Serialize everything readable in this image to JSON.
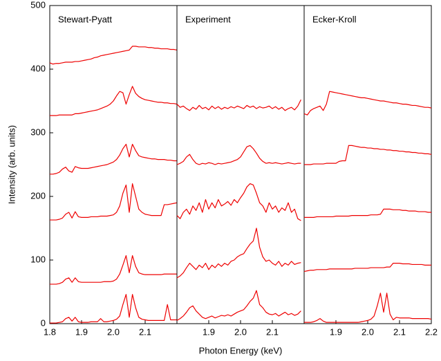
{
  "chart_data": [
    {
      "type": "line",
      "title": "Stewart-Pyatt",
      "ylabel": "Intensity (arb. units)",
      "x": [
        1.8,
        1.81,
        1.82,
        1.83,
        1.84,
        1.85,
        1.86,
        1.87,
        1.88,
        1.89,
        1.9,
        1.91,
        1.92,
        1.93,
        1.94,
        1.95,
        1.96,
        1.97,
        1.98,
        1.99,
        2.0,
        2.01,
        2.02,
        2.03,
        2.04,
        2.05,
        2.06,
        2.07,
        2.08,
        2.09,
        2.1,
        2.11,
        2.12,
        2.13,
        2.14,
        2.15,
        2.16,
        2.17,
        2.18,
        2.19,
        2.2
      ],
      "xlim": [
        1.8,
        2.2
      ],
      "xticks": [
        1.8,
        1.9,
        {
          "value": 2,
          "label": "2.0"
        },
        2.1
      ],
      "ylim": [
        0,
        500
      ],
      "yticks": [
        0,
        100,
        200,
        300,
        400,
        500
      ],
      "series": [
        {
          "color": "#ee0000",
          "values": [
            1,
            1,
            1,
            2,
            3,
            8,
            10,
            4,
            10,
            3,
            2,
            2,
            2,
            3,
            3,
            3,
            8,
            3,
            3,
            4,
            5,
            7,
            12,
            30,
            46,
            10,
            46,
            25,
            10,
            7,
            6,
            5,
            5,
            5,
            5,
            5,
            5,
            30,
            6,
            6,
            6
          ]
        },
        {
          "color": "#ee0000",
          "values": [
            62,
            62,
            62,
            63,
            65,
            70,
            72,
            65,
            72,
            66,
            65,
            65,
            65,
            65,
            65,
            65,
            65,
            66,
            66,
            66,
            67,
            70,
            78,
            92,
            107,
            80,
            107,
            90,
            80,
            78,
            77,
            77,
            77,
            77,
            77,
            77,
            78,
            78,
            78,
            78,
            78
          ]
        },
        {
          "color": "#ee0000",
          "values": [
            163,
            163,
            163,
            164,
            166,
            172,
            175,
            166,
            176,
            168,
            167,
            167,
            167,
            168,
            168,
            168,
            169,
            169,
            169,
            170,
            171,
            175,
            185,
            205,
            218,
            175,
            220,
            200,
            180,
            175,
            172,
            171,
            170,
            170,
            170,
            170,
            187,
            187,
            188,
            189,
            190
          ]
        },
        {
          "color": "#ee0000",
          "values": [
            235,
            235,
            236,
            238,
            243,
            246,
            240,
            238,
            247,
            245,
            244,
            244,
            244,
            245,
            246,
            247,
            248,
            249,
            250,
            252,
            254,
            258,
            265,
            275,
            282,
            262,
            282,
            272,
            264,
            262,
            261,
            260,
            259,
            259,
            258,
            258,
            258,
            257,
            257,
            256,
            256
          ]
        },
        {
          "color": "#ee0000",
          "values": [
            327,
            327,
            327,
            328,
            328,
            328,
            328,
            328,
            330,
            330,
            331,
            332,
            333,
            334,
            335,
            336,
            338,
            340,
            342,
            345,
            350,
            358,
            365,
            363,
            345,
            360,
            373,
            362,
            357,
            354,
            352,
            351,
            350,
            349,
            348,
            348,
            347,
            347,
            346,
            346,
            345
          ]
        },
        {
          "color": "#ee0000",
          "values": [
            410,
            408,
            409,
            409,
            410,
            411,
            411,
            411,
            412,
            412,
            413,
            414,
            415,
            416,
            418,
            419,
            421,
            422,
            423,
            424,
            425,
            426,
            427,
            428,
            429,
            430,
            436,
            436,
            435,
            435,
            435,
            434,
            434,
            433,
            433,
            432,
            432,
            432,
            431,
            431,
            430
          ]
        }
      ]
    },
    {
      "type": "line",
      "title": "Experiment",
      "xlabel": "Photon Energy (keV)",
      "x": [
        1.8,
        1.81,
        1.82,
        1.83,
        1.84,
        1.85,
        1.86,
        1.87,
        1.88,
        1.89,
        1.9,
        1.91,
        1.92,
        1.93,
        1.94,
        1.95,
        1.96,
        1.97,
        1.98,
        1.99,
        2.0,
        2.01,
        2.02,
        2.03,
        2.04,
        2.05,
        2.06,
        2.07,
        2.08,
        2.09,
        2.1,
        2.11,
        2.12,
        2.13,
        2.14,
        2.15,
        2.16,
        2.17,
        2.18,
        2.19,
        2.2
      ],
      "xlim": [
        1.8,
        2.2
      ],
      "xticks": [
        1.9,
        {
          "value": 2,
          "label": "2.0"
        },
        2.1
      ],
      "ylim": [
        0,
        500
      ],
      "series": [
        {
          "color": "#ee0000",
          "values": [
            5,
            8,
            12,
            18,
            25,
            28,
            20,
            15,
            10,
            8,
            10,
            12,
            9,
            11,
            13,
            12,
            14,
            12,
            15,
            18,
            20,
            22,
            28,
            35,
            40,
            52,
            30,
            25,
            18,
            15,
            14,
            16,
            12,
            15,
            18,
            14,
            16,
            13,
            15,
            20,
            null
          ]
        },
        {
          "color": "#ee0000",
          "values": [
            72,
            75,
            80,
            88,
            95,
            90,
            85,
            92,
            88,
            95,
            85,
            92,
            88,
            94,
            90,
            95,
            92,
            98,
            100,
            105,
            108,
            110,
            118,
            125,
            130,
            150,
            120,
            105,
            98,
            100,
            95,
            92,
            98,
            90,
            95,
            92,
            98,
            93,
            95,
            96,
            null
          ]
        },
        {
          "color": "#ee0000",
          "values": [
            170,
            165,
            175,
            180,
            172,
            185,
            178,
            190,
            175,
            195,
            180,
            190,
            182,
            195,
            185,
            188,
            192,
            186,
            195,
            190,
            198,
            205,
            215,
            220,
            218,
            205,
            190,
            185,
            175,
            190,
            180,
            185,
            175,
            182,
            178,
            190,
            175,
            180,
            165,
            162,
            null
          ]
        },
        {
          "color": "#ee0000",
          "values": [
            250,
            252,
            255,
            262,
            266,
            258,
            252,
            250,
            252,
            251,
            253,
            252,
            250,
            252,
            251,
            252,
            253,
            254,
            256,
            258,
            262,
            270,
            278,
            280,
            275,
            268,
            260,
            255,
            252,
            253,
            252,
            253,
            252,
            251,
            252,
            253,
            252,
            251,
            252,
            252,
            null
          ]
        },
        {
          "color": "#ee0000",
          "values": [
            345,
            340,
            342,
            338,
            335,
            340,
            337,
            343,
            338,
            340,
            336,
            342,
            338,
            341,
            337,
            340,
            338,
            341,
            339,
            342,
            340,
            338,
            343,
            340,
            342,
            338,
            341,
            339,
            340,
            342,
            338,
            341,
            337,
            340,
            335,
            338,
            340,
            336,
            342,
            352,
            null
          ]
        }
      ]
    },
    {
      "type": "line",
      "title": "Ecker-Kroll",
      "x": [
        1.8,
        1.81,
        1.82,
        1.83,
        1.84,
        1.85,
        1.86,
        1.87,
        1.88,
        1.89,
        1.9,
        1.91,
        1.92,
        1.93,
        1.94,
        1.95,
        1.96,
        1.97,
        1.98,
        1.99,
        2.0,
        2.01,
        2.02,
        2.03,
        2.04,
        2.05,
        2.06,
        2.07,
        2.08,
        2.09,
        2.1,
        2.11,
        2.12,
        2.13,
        2.14,
        2.15,
        2.16,
        2.17,
        2.18,
        2.19,
        2.2
      ],
      "xlim": [
        1.8,
        2.2
      ],
      "xticks": [
        1.9,
        {
          "value": 2,
          "label": "2.0"
        },
        2.1,
        2.2
      ],
      "ylim": [
        0,
        500
      ],
      "series": [
        {
          "color": "#ee0000",
          "values": [
            2,
            2,
            2,
            3,
            5,
            8,
            4,
            2,
            2,
            2,
            2,
            2,
            2,
            2,
            2,
            2,
            2,
            2,
            3,
            4,
            5,
            7,
            12,
            28,
            48,
            18,
            48,
            15,
            6,
            10,
            9,
            9,
            9,
            9,
            8,
            8,
            8,
            8,
            8,
            8,
            7
          ]
        },
        {
          "color": "#ee0000",
          "values": [
            82,
            83,
            84,
            84,
            85,
            85,
            85,
            85,
            86,
            86,
            86,
            86,
            86,
            86,
            86,
            86,
            87,
            87,
            87,
            87,
            87,
            88,
            88,
            88,
            88,
            88,
            89,
            89,
            95,
            95,
            95,
            94,
            94,
            94,
            93,
            93,
            93,
            93,
            92,
            92,
            92
          ]
        },
        {
          "color": "#ee0000",
          "values": [
            167,
            167,
            167,
            167,
            168,
            168,
            168,
            168,
            168,
            168,
            169,
            169,
            169,
            169,
            169,
            170,
            170,
            170,
            170,
            170,
            170,
            171,
            171,
            171,
            172,
            180,
            180,
            180,
            179,
            179,
            179,
            178,
            178,
            177,
            177,
            177,
            176,
            176,
            176,
            175,
            175
          ]
        },
        {
          "color": "#ee0000",
          "values": [
            250,
            250,
            250,
            251,
            251,
            251,
            251,
            252,
            252,
            252,
            252,
            255,
            256,
            256,
            280,
            280,
            279,
            278,
            277,
            277,
            276,
            276,
            275,
            275,
            274,
            274,
            273,
            273,
            272,
            272,
            271,
            271,
            270,
            270,
            269,
            269,
            268,
            268,
            267,
            267,
            266
          ]
        },
        {
          "color": "#ee0000",
          "values": [
            330,
            328,
            335,
            338,
            340,
            342,
            335,
            345,
            365,
            364,
            363,
            362,
            361,
            360,
            359,
            358,
            357,
            356,
            355,
            355,
            354,
            353,
            352,
            351,
            350,
            350,
            349,
            348,
            347,
            347,
            346,
            345,
            345,
            344,
            343,
            343,
            342,
            341,
            340,
            340,
            339
          ]
        }
      ]
    }
  ]
}
